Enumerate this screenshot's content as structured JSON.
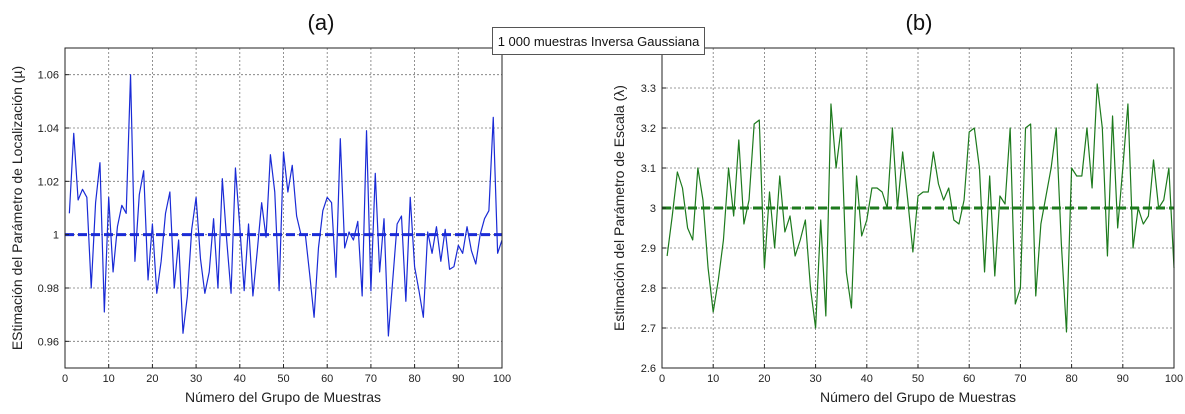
{
  "banner": "1 000 muestras Inversa Gaussiana",
  "chart_data": [
    {
      "type": "line",
      "panel_label": "(a)",
      "xlabel": "Número del Grupo de Muestras",
      "ylabel": "EStimación del Parámetro de Localización (µ)",
      "xlim": [
        0,
        100
      ],
      "ylim": [
        0.95,
        1.07
      ],
      "xticks": [
        0,
        10,
        20,
        30,
        40,
        50,
        60,
        70,
        80,
        90,
        100
      ],
      "yticks": [
        0.96,
        0.98,
        1,
        1.02,
        1.04,
        1.06
      ],
      "ytick_labels": [
        "0.96",
        "0.98",
        "1",
        "1.02",
        "1.04",
        "1.06"
      ],
      "grid": true,
      "series_color": "#1a2bd6",
      "reference_value": 1,
      "x_start": 1,
      "values": [
        1.008,
        1.038,
        1.013,
        1.017,
        1.014,
        0.98,
        1.012,
        1.027,
        0.971,
        1.014,
        0.986,
        1.003,
        1.011,
        1.008,
        1.06,
        0.99,
        1.015,
        1.024,
        0.983,
        1.004,
        0.978,
        0.99,
        1.008,
        1.016,
        0.98,
        0.998,
        0.963,
        0.977,
        1.002,
        1.014,
        0.991,
        0.978,
        0.986,
        1.006,
        0.98,
        1.021,
        0.998,
        0.978,
        1.025,
        1.003,
        0.979,
        1.004,
        0.977,
        0.994,
        1.012,
        0.999,
        1.03,
        1.016,
        0.979,
        1.031,
        1.016,
        1.026,
        1.007,
        1.0,
        1.0,
        0.985,
        0.969,
        0.995,
        1.009,
        1.014,
        1.012,
        0.984,
        1.036,
        0.995,
        1.001,
        0.998,
        1.005,
        0.977,
        1.039,
        0.979,
        1.023,
        0.986,
        1.006,
        0.962,
        0.983,
        1.004,
        1.007,
        0.975,
        1.014,
        0.988,
        0.979,
        0.969,
        1.001,
        0.993,
        1.003,
        0.99,
        1.002,
        0.987,
        0.988,
        0.996,
        0.993,
        1.003,
        0.994,
        0.989,
        1.0,
        1.006,
        1.009,
        1.044,
        0.993,
        0.998
      ]
    },
    {
      "type": "line",
      "panel_label": "(b)",
      "xlabel": "Número del Grupo de Muestras",
      "ylabel": "Estimación del Parámetro de Escala (λ)",
      "xlim": [
        0,
        100
      ],
      "ylim": [
        2.6,
        3.4
      ],
      "xticks": [
        0,
        10,
        20,
        30,
        40,
        50,
        60,
        70,
        80,
        90,
        100
      ],
      "yticks": [
        2.6,
        2.7,
        2.8,
        2.9,
        3,
        3.1,
        3.2,
        3.3
      ],
      "ytick_labels": [
        "2.6",
        "2.7",
        "2.8",
        "2.9",
        "3",
        "3.1",
        "3.2",
        "3.3"
      ],
      "grid": true,
      "series_color": "#1d7a1d",
      "reference_value": 3,
      "x_start": 1,
      "values": [
        2.88,
        2.98,
        3.09,
        3.05,
        2.95,
        2.92,
        3.1,
        3.02,
        2.85,
        2.74,
        2.82,
        2.92,
        3.1,
        2.98,
        3.17,
        2.96,
        3.02,
        3.21,
        3.22,
        2.85,
        3.04,
        2.9,
        3.08,
        2.94,
        2.98,
        2.88,
        2.92,
        2.97,
        2.8,
        2.7,
        2.97,
        2.73,
        3.26,
        3.1,
        3.2,
        2.84,
        2.75,
        3.08,
        2.93,
        2.97,
        3.05,
        3.05,
        3.04,
        3.0,
        3.2,
        3.0,
        3.14,
        3.02,
        2.89,
        3.03,
        3.04,
        3.04,
        3.14,
        3.06,
        3.02,
        3.05,
        2.97,
        2.96,
        3.02,
        3.19,
        3.2,
        3.1,
        2.84,
        3.08,
        2.83,
        3.03,
        3.01,
        3.2,
        2.76,
        2.8,
        3.2,
        3.21,
        2.78,
        2.96,
        3.03,
        3.1,
        3.2,
        2.91,
        2.69,
        3.1,
        3.08,
        3.08,
        3.2,
        3.05,
        3.31,
        3.2,
        2.88,
        3.23,
        2.95,
        3.1,
        3.26,
        2.9,
        3.0,
        2.96,
        2.98,
        3.12,
        3.0,
        3.02,
        3.1,
        2.85
      ]
    }
  ]
}
